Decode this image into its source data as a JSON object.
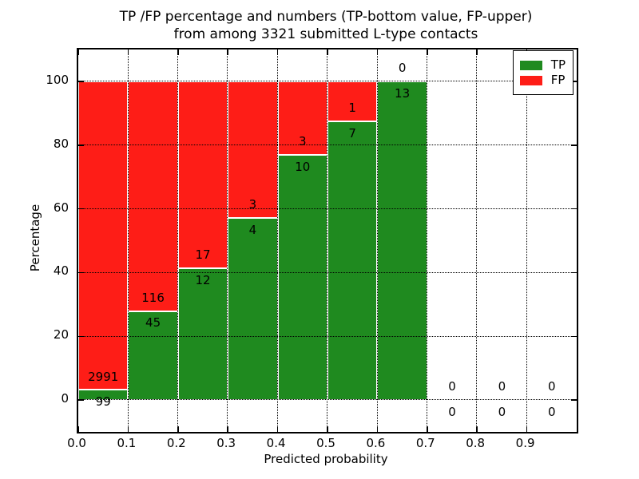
{
  "title": {
    "line1": "TP /FP percentage and numbers (TP-bottom value, FP-upper)",
    "line2": "from among 3321 submitted L-type contacts"
  },
  "colors": {
    "tp": "#1f8a1f",
    "fp": "#fe1d17",
    "grid": "#000000",
    "background": "#ffffff"
  },
  "chart_data": {
    "type": "bar",
    "stacked": true,
    "title": "TP /FP percentage and numbers (TP-bottom value, FP-upper) from among 3321 submitted L-type contacts",
    "xlabel": "Predicted probability",
    "ylabel": "Percentage",
    "xlim": [
      0.0,
      1.0
    ],
    "ylim": [
      -10,
      110
    ],
    "grid": true,
    "xticks": [
      "0.0",
      "0.1",
      "0.2",
      "0.3",
      "0.4",
      "0.5",
      "0.6",
      "0.7",
      "0.8",
      "0.9"
    ],
    "yticks": [
      "0",
      "20",
      "40",
      "60",
      "80",
      "100"
    ],
    "bin_width": 0.1,
    "total_contacts": 3321,
    "legend": {
      "position": "upper-right",
      "entries": [
        {
          "label": "TP",
          "color": "#1f8a1f"
        },
        {
          "label": "FP",
          "color": "#fe1d17"
        }
      ]
    },
    "bins": [
      {
        "x0": 0.0,
        "tp": 99,
        "fp": 2991,
        "tp_pct": 3.2
      },
      {
        "x0": 0.1,
        "tp": 45,
        "fp": 116,
        "tp_pct": 28.0
      },
      {
        "x0": 0.2,
        "tp": 12,
        "fp": 17,
        "tp_pct": 41.4
      },
      {
        "x0": 0.3,
        "tp": 4,
        "fp": 3,
        "tp_pct": 57.1
      },
      {
        "x0": 0.4,
        "tp": 10,
        "fp": 3,
        "tp_pct": 76.9
      },
      {
        "x0": 0.5,
        "tp": 7,
        "fp": 1,
        "tp_pct": 87.5
      },
      {
        "x0": 0.6,
        "tp": 13,
        "fp": 0,
        "tp_pct": 100.0
      },
      {
        "x0": 0.7,
        "tp": 0,
        "fp": 0,
        "tp_pct": 0
      },
      {
        "x0": 0.8,
        "tp": 0,
        "fp": 0,
        "tp_pct": 0
      },
      {
        "x0": 0.9,
        "tp": 0,
        "fp": 0,
        "tp_pct": 0
      }
    ]
  }
}
